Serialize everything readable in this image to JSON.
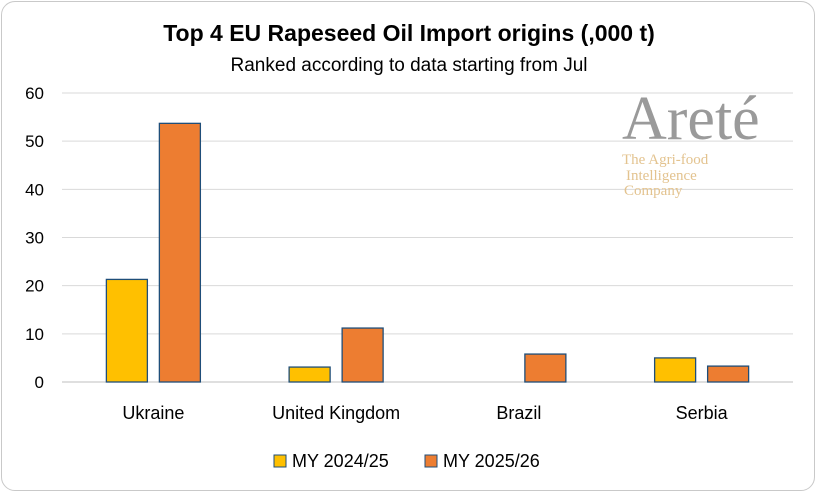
{
  "chart_data": {
    "type": "bar",
    "title": "Top 4 EU Rapeseed Oil Import origins (,000 t)",
    "subtitle": "Ranked according to data starting from Jul",
    "categories": [
      "Ukraine",
      "United Kingdom",
      "Brazil",
      "Serbia"
    ],
    "series": [
      {
        "name": "MY 2024/25",
        "color": "#ffc000",
        "values": [
          21.3,
          3.1,
          0,
          5.0
        ]
      },
      {
        "name": "MY 2025/26",
        "color": "#ed7d31",
        "values": [
          53.7,
          11.2,
          5.8,
          3.3
        ]
      }
    ],
    "ylim": [
      0,
      60
    ],
    "yticks": [
      0,
      10,
      20,
      30,
      40,
      50,
      60
    ],
    "grid": true,
    "legend_position": "bottom",
    "bar_border_color": "#1f4e79"
  },
  "watermark": {
    "brand": "Areté",
    "tagline_lines": [
      "The Agri-food",
      "Intelligence",
      "Company"
    ]
  }
}
